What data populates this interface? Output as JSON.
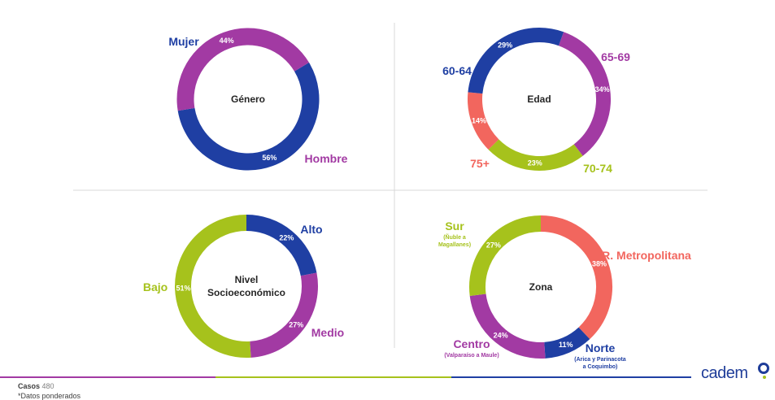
{
  "chart_data": [
    {
      "type": "pie",
      "title": "Género",
      "segments": [
        {
          "label": "Mujer",
          "value": 56,
          "pct_text": "56%",
          "color": "#1f3fa3"
        },
        {
          "label": "Hombre",
          "value": 44,
          "pct_text": "44%",
          "color": "#a23aa3"
        }
      ]
    },
    {
      "type": "pie",
      "title": "Edad",
      "segments": [
        {
          "label": "65-69",
          "value": 34,
          "pct_text": "34%",
          "color": "#a23aa3"
        },
        {
          "label": "70-74",
          "value": 23,
          "pct_text": "23%",
          "color": "#a6c21c"
        },
        {
          "label": "75+",
          "value": 14,
          "pct_text": "14%",
          "color": "#f2665e"
        },
        {
          "label": "60-64",
          "value": 29,
          "pct_text": "29%",
          "color": "#1f3fa3"
        }
      ]
    },
    {
      "type": "pie",
      "title": "Nivel Socioeconómico",
      "title_lines": [
        "Nivel",
        "Socioeconómico"
      ],
      "segments": [
        {
          "label": "Alto",
          "value": 22,
          "pct_text": "22%",
          "color": "#1f3fa3"
        },
        {
          "label": "Medio",
          "value": 27,
          "pct_text": "27%",
          "color": "#a23aa3"
        },
        {
          "label": "Bajo",
          "value": 51,
          "pct_text": "51%",
          "color": "#a6c21c"
        }
      ]
    },
    {
      "type": "pie",
      "title": "Zona",
      "segments": [
        {
          "label": "R. Metropolitana",
          "value": 38,
          "pct_text": "38%",
          "color": "#f2665e"
        },
        {
          "label": "Norte",
          "sublabel": [
            "(Arica y Parinacota",
            "a Coquimbo)"
          ],
          "value": 11,
          "pct_text": "11%",
          "color": "#1f3fa3"
        },
        {
          "label": "Centro",
          "sublabel": [
            "(Valparaíso a Maule)"
          ],
          "value": 24,
          "pct_text": "24%",
          "color": "#a23aa3"
        },
        {
          "label": "Sur",
          "sublabel": [
            "(Ñuble a",
            "Magallanes)"
          ],
          "value": 27,
          "pct_text": "27%",
          "color": "#a6c21c"
        }
      ]
    }
  ],
  "footer": {
    "casos_label": "Casos",
    "casos_value": "480",
    "note": "*Datos ponderados",
    "logo": "cadem"
  },
  "colors": {
    "blue": "#1f3fa3",
    "purple": "#a23aa3",
    "green": "#a6c21c",
    "coral": "#f2665e",
    "divider": "#d9d9d9"
  }
}
